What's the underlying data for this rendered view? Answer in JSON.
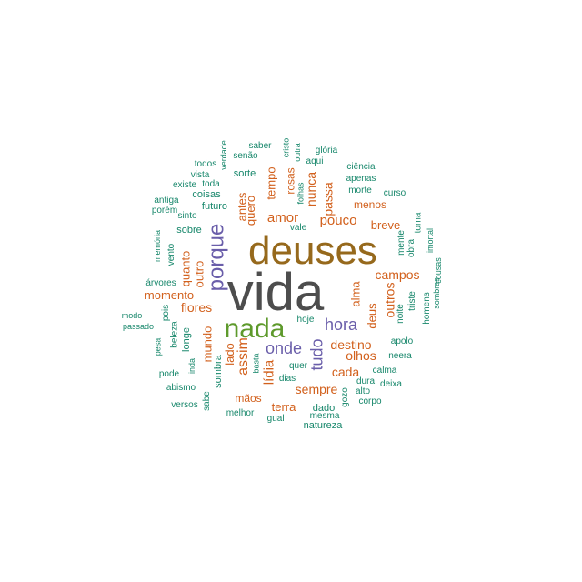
{
  "colors": {
    "dark": "#4d4d4d",
    "brown": "#96691c",
    "green": "#5e9a2c",
    "purple": "#6a5eaa",
    "orange": "#d2601c",
    "teal": "#17876b"
  },
  "words": [
    {
      "text": "vida",
      "color": "dark",
      "rot": 0
    },
    {
      "text": "deuses",
      "color": "brown",
      "rot": 0
    },
    {
      "text": "nada",
      "color": "green",
      "rot": 0
    },
    {
      "text": "porque",
      "color": "purple",
      "rot": -90
    },
    {
      "text": "hora",
      "color": "purple",
      "rot": 0
    },
    {
      "text": "onde",
      "color": "purple",
      "rot": 0
    },
    {
      "text": "tudo",
      "color": "purple",
      "rot": -90
    },
    {
      "text": "amor",
      "color": "orange",
      "rot": 0
    },
    {
      "text": "pouco",
      "color": "orange",
      "rot": 0
    },
    {
      "text": "destino",
      "color": "orange",
      "rot": 0
    },
    {
      "text": "sempre",
      "color": "orange",
      "rot": 0
    },
    {
      "text": "campos",
      "color": "orange",
      "rot": 0
    },
    {
      "text": "olhos",
      "color": "orange",
      "rot": 0
    },
    {
      "text": "cada",
      "color": "orange",
      "rot": 0
    },
    {
      "text": "flores",
      "color": "orange",
      "rot": 0
    },
    {
      "text": "momento",
      "color": "orange",
      "rot": 0
    },
    {
      "text": "assim",
      "color": "orange",
      "rot": -90
    },
    {
      "text": "lídia",
      "color": "orange",
      "rot": -90
    },
    {
      "text": "passa",
      "color": "orange",
      "rot": -90
    },
    {
      "text": "nunca",
      "color": "orange",
      "rot": -90
    },
    {
      "text": "alma",
      "color": "orange",
      "rot": -90
    },
    {
      "text": "deus",
      "color": "orange",
      "rot": -90
    },
    {
      "text": "outros",
      "color": "orange",
      "rot": -90
    },
    {
      "text": "breve",
      "color": "orange",
      "rot": 0
    },
    {
      "text": "menos",
      "color": "orange",
      "rot": 0
    },
    {
      "text": "tempo",
      "color": "orange",
      "rot": -90
    },
    {
      "text": "quero",
      "color": "orange",
      "rot": -90
    },
    {
      "text": "antes",
      "color": "orange",
      "rot": -90
    },
    {
      "text": "rosas",
      "color": "orange",
      "rot": -90
    },
    {
      "text": "quanto",
      "color": "orange",
      "rot": -90
    },
    {
      "text": "outro",
      "color": "orange",
      "rot": -90
    },
    {
      "text": "mundo",
      "color": "orange",
      "rot": -90
    },
    {
      "text": "lado",
      "color": "orange",
      "rot": -90
    },
    {
      "text": "mãos",
      "color": "orange",
      "rot": 0
    },
    {
      "text": "terra",
      "color": "orange",
      "rot": 0
    },
    {
      "text": "sorte",
      "color": "teal",
      "rot": 0
    },
    {
      "text": "futuro",
      "color": "teal",
      "rot": 0
    },
    {
      "text": "coisas",
      "color": "teal",
      "rot": 0
    },
    {
      "text": "sobre",
      "color": "teal",
      "rot": 0
    },
    {
      "text": "sinto",
      "color": "teal",
      "rot": 0
    },
    {
      "text": "toda",
      "color": "teal",
      "rot": 0
    },
    {
      "text": "existe",
      "color": "teal",
      "rot": 0
    },
    {
      "text": "vista",
      "color": "teal",
      "rot": 0
    },
    {
      "text": "todos",
      "color": "teal",
      "rot": 0
    },
    {
      "text": "verdade",
      "color": "teal",
      "rot": -90
    },
    {
      "text": "saber",
      "color": "teal",
      "rot": 0
    },
    {
      "text": "senão",
      "color": "teal",
      "rot": 0
    },
    {
      "text": "cristo",
      "color": "teal",
      "rot": -90
    },
    {
      "text": "outra",
      "color": "teal",
      "rot": -90
    },
    {
      "text": "aqui",
      "color": "teal",
      "rot": 0
    },
    {
      "text": "glória",
      "color": "teal",
      "rot": 0
    },
    {
      "text": "folhas",
      "color": "teal",
      "rot": -90
    },
    {
      "text": "ciência",
      "color": "teal",
      "rot": 0
    },
    {
      "text": "apenas",
      "color": "teal",
      "rot": 0
    },
    {
      "text": "morte",
      "color": "teal",
      "rot": 0
    },
    {
      "text": "curso",
      "color": "teal",
      "rot": 0
    },
    {
      "text": "vale",
      "color": "teal",
      "rot": 0
    },
    {
      "text": "torna",
      "color": "teal",
      "rot": -90
    },
    {
      "text": "mente",
      "color": "teal",
      "rot": -90
    },
    {
      "text": "obra",
      "color": "teal",
      "rot": -90
    },
    {
      "text": "imortal",
      "color": "teal",
      "rot": -90
    },
    {
      "text": "noite",
      "color": "teal",
      "rot": -90
    },
    {
      "text": "triste",
      "color": "teal",
      "rot": -90
    },
    {
      "text": "homens",
      "color": "teal",
      "rot": -90
    },
    {
      "text": "cousas",
      "color": "teal",
      "rot": -90
    },
    {
      "text": "sombras",
      "color": "teal",
      "rot": -90
    },
    {
      "text": "apolo",
      "color": "teal",
      "rot": 0
    },
    {
      "text": "neera",
      "color": "teal",
      "rot": 0
    },
    {
      "text": "calma",
      "color": "teal",
      "rot": 0
    },
    {
      "text": "deixa",
      "color": "teal",
      "rot": 0
    },
    {
      "text": "dura",
      "color": "teal",
      "rot": 0
    },
    {
      "text": "alto",
      "color": "teal",
      "rot": 0
    },
    {
      "text": "corpo",
      "color": "teal",
      "rot": 0
    },
    {
      "text": "gozo",
      "color": "teal",
      "rot": -90
    },
    {
      "text": "mesma",
      "color": "teal",
      "rot": 0
    },
    {
      "text": "natureza",
      "color": "teal",
      "rot": 0
    },
    {
      "text": "dado",
      "color": "teal",
      "rot": 0
    },
    {
      "text": "igual",
      "color": "teal",
      "rot": 0
    },
    {
      "text": "melhor",
      "color": "teal",
      "rot": 0
    },
    {
      "text": "dias",
      "color": "teal",
      "rot": 0
    },
    {
      "text": "quer",
      "color": "teal",
      "rot": 0
    },
    {
      "text": "basta",
      "color": "teal",
      "rot": -90
    },
    {
      "text": "sombra",
      "color": "teal",
      "rot": -90
    },
    {
      "text": "hoje",
      "color": "teal",
      "rot": 0
    },
    {
      "text": "antiga",
      "color": "teal",
      "rot": 0
    },
    {
      "text": "porém",
      "color": "teal",
      "rot": 0
    },
    {
      "text": "memória",
      "color": "teal",
      "rot": -90
    },
    {
      "text": "vento",
      "color": "teal",
      "rot": -90
    },
    {
      "text": "árvores",
      "color": "teal",
      "rot": 0
    },
    {
      "text": "modo",
      "color": "teal",
      "rot": 0
    },
    {
      "text": "passado",
      "color": "teal",
      "rot": 0
    },
    {
      "text": "pois",
      "color": "teal",
      "rot": -90
    },
    {
      "text": "beleza",
      "color": "teal",
      "rot": -90
    },
    {
      "text": "longe",
      "color": "teal",
      "rot": -90
    },
    {
      "text": "pesa",
      "color": "teal",
      "rot": -90
    },
    {
      "text": "inda",
      "color": "teal",
      "rot": -90
    },
    {
      "text": "pode",
      "color": "teal",
      "rot": 0
    },
    {
      "text": "abismo",
      "color": "teal",
      "rot": 0
    },
    {
      "text": "versos",
      "color": "teal",
      "rot": 0
    },
    {
      "text": "sabe",
      "color": "teal",
      "rot": -90
    }
  ]
}
